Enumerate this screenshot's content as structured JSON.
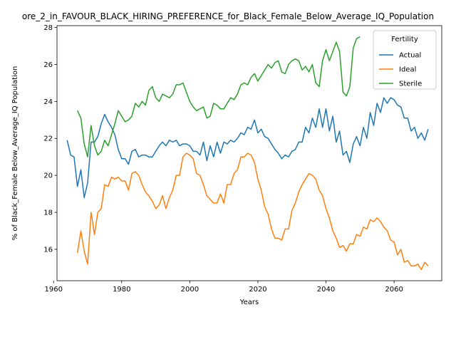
{
  "chart_data": {
    "type": "line",
    "title": "ore_2_in_FAVOUR_BLACK_HIRING_PREFERENCE_for_Black_Female_Below_Average_IQ_Population",
    "xlabel": "Years",
    "ylabel": "% of Black_Female Below_Average_IQ Population",
    "xlim": [
      1961,
      2074
    ],
    "ylim": [
      14.3,
      28.1
    ],
    "xticks": [
      1960,
      1980,
      2000,
      2020,
      2040,
      2060
    ],
    "yticks": [
      16,
      18,
      20,
      22,
      24,
      26,
      28
    ],
    "grid": false,
    "legend": {
      "title": "Fertility",
      "placement": "top-right"
    },
    "series": [
      {
        "name": "Actual",
        "color": "#1f77b4",
        "points": [
          [
            1964,
            21.9
          ],
          [
            1965,
            21.1
          ],
          [
            1966,
            21.0
          ],
          [
            1967,
            19.4
          ],
          [
            1968,
            20.3
          ],
          [
            1969,
            18.8
          ],
          [
            1970,
            19.6
          ],
          [
            1971,
            21.8
          ],
          [
            1972,
            21.8
          ],
          [
            1973,
            22.1
          ],
          [
            1974,
            22.8
          ],
          [
            1975,
            23.3
          ],
          [
            1976,
            22.9
          ],
          [
            1977,
            22.6
          ],
          [
            1978,
            22.2
          ],
          [
            1979,
            21.4
          ],
          [
            1980,
            20.9
          ],
          [
            1981,
            20.9
          ],
          [
            1982,
            20.6
          ],
          [
            1983,
            21.3
          ],
          [
            1984,
            21.4
          ],
          [
            1985,
            21.0
          ],
          [
            1986,
            21.1
          ],
          [
            1987,
            21.1
          ],
          [
            1988,
            21.0
          ],
          [
            1989,
            21.0
          ],
          [
            1990,
            21.3
          ],
          [
            1991,
            21.6
          ],
          [
            1992,
            21.8
          ],
          [
            1993,
            21.6
          ],
          [
            1994,
            21.9
          ],
          [
            1995,
            21.8
          ],
          [
            1996,
            21.9
          ],
          [
            1997,
            21.6
          ],
          [
            1998,
            21.7
          ],
          [
            1999,
            21.7
          ],
          [
            2000,
            21.6
          ],
          [
            2001,
            21.3
          ],
          [
            2002,
            21.3
          ],
          [
            2003,
            21.1
          ],
          [
            2004,
            21.8
          ],
          [
            2005,
            20.8
          ],
          [
            2006,
            21.6
          ],
          [
            2007,
            21.0
          ],
          [
            2008,
            21.8
          ],
          [
            2009,
            21.2
          ],
          [
            2010,
            21.8
          ],
          [
            2011,
            21.7
          ],
          [
            2012,
            21.9
          ],
          [
            2013,
            21.8
          ],
          [
            2014,
            22.0
          ],
          [
            2015,
            22.3
          ],
          [
            2016,
            22.2
          ],
          [
            2017,
            22.6
          ],
          [
            2018,
            22.5
          ],
          [
            2019,
            23.0
          ],
          [
            2020,
            22.3
          ],
          [
            2021,
            22.5
          ],
          [
            2022,
            22.1
          ],
          [
            2023,
            22.0
          ],
          [
            2024,
            21.7
          ],
          [
            2025,
            21.4
          ],
          [
            2026,
            21.2
          ],
          [
            2027,
            20.9
          ],
          [
            2028,
            21.1
          ],
          [
            2029,
            21.0
          ],
          [
            2030,
            21.3
          ],
          [
            2031,
            21.4
          ],
          [
            2032,
            21.8
          ],
          [
            2033,
            21.8
          ],
          [
            2034,
            22.6
          ],
          [
            2035,
            22.3
          ],
          [
            2036,
            23.1
          ],
          [
            2037,
            22.6
          ],
          [
            2038,
            23.6
          ],
          [
            2039,
            22.6
          ],
          [
            2040,
            23.6
          ],
          [
            2041,
            22.4
          ],
          [
            2042,
            23.2
          ],
          [
            2043,
            21.8
          ],
          [
            2044,
            22.4
          ],
          [
            2045,
            21.1
          ],
          [
            2046,
            21.3
          ],
          [
            2047,
            20.7
          ],
          [
            2048,
            21.7
          ],
          [
            2049,
            22.1
          ],
          [
            2050,
            21.6
          ],
          [
            2051,
            22.6
          ],
          [
            2052,
            22.0
          ],
          [
            2053,
            23.4
          ],
          [
            2054,
            22.7
          ],
          [
            2055,
            23.9
          ],
          [
            2056,
            23.4
          ],
          [
            2057,
            24.2
          ],
          [
            2058,
            23.9
          ],
          [
            2059,
            24.2
          ],
          [
            2060,
            24.1
          ],
          [
            2061,
            23.8
          ],
          [
            2062,
            23.7
          ],
          [
            2063,
            23.1
          ],
          [
            2064,
            23.1
          ],
          [
            2065,
            22.4
          ],
          [
            2066,
            22.6
          ],
          [
            2067,
            22.0
          ],
          [
            2068,
            22.3
          ],
          [
            2069,
            21.9
          ],
          [
            2070,
            22.5
          ]
        ]
      },
      {
        "name": "Ideal",
        "color": "#ff7f0e",
        "points": [
          [
            1967,
            15.8
          ],
          [
            1968,
            17.0
          ],
          [
            1969,
            15.9
          ],
          [
            1970,
            15.2
          ],
          [
            1971,
            18.0
          ],
          [
            1972,
            16.8
          ],
          [
            1973,
            18.0
          ],
          [
            1974,
            18.2
          ],
          [
            1975,
            19.5
          ],
          [
            1976,
            19.4
          ],
          [
            1977,
            19.9
          ],
          [
            1978,
            19.8
          ],
          [
            1979,
            19.9
          ],
          [
            1980,
            19.7
          ],
          [
            1981,
            19.7
          ],
          [
            1982,
            19.2
          ],
          [
            1983,
            20.1
          ],
          [
            1984,
            20.2
          ],
          [
            1985,
            20.0
          ],
          [
            1986,
            19.5
          ],
          [
            1987,
            19.1
          ],
          [
            1988,
            18.9
          ],
          [
            1989,
            18.6
          ],
          [
            1990,
            18.2
          ],
          [
            1991,
            18.4
          ],
          [
            1992,
            18.9
          ],
          [
            1993,
            18.2
          ],
          [
            1994,
            18.8
          ],
          [
            1995,
            19.2
          ],
          [
            1996,
            20.0
          ],
          [
            1997,
            20.0
          ],
          [
            1998,
            21.0
          ],
          [
            1999,
            21.2
          ],
          [
            2000,
            21.1
          ],
          [
            2001,
            20.9
          ],
          [
            2002,
            20.1
          ],
          [
            2003,
            20.0
          ],
          [
            2004,
            19.5
          ],
          [
            2005,
            18.9
          ],
          [
            2006,
            18.7
          ],
          [
            2007,
            18.5
          ],
          [
            2008,
            18.5
          ],
          [
            2009,
            19.0
          ],
          [
            2010,
            18.5
          ],
          [
            2011,
            19.5
          ],
          [
            2012,
            19.5
          ],
          [
            2013,
            20.1
          ],
          [
            2014,
            20.3
          ],
          [
            2015,
            21.0
          ],
          [
            2016,
            21.0
          ],
          [
            2017,
            21.2
          ],
          [
            2018,
            21.1
          ],
          [
            2019,
            20.7
          ],
          [
            2020,
            19.8
          ],
          [
            2021,
            19.2
          ],
          [
            2022,
            18.3
          ],
          [
            2023,
            17.9
          ],
          [
            2024,
            17.1
          ],
          [
            2025,
            16.6
          ],
          [
            2026,
            16.6
          ],
          [
            2027,
            16.5
          ],
          [
            2028,
            17.1
          ],
          [
            2029,
            17.1
          ],
          [
            2030,
            18.1
          ],
          [
            2031,
            18.5
          ],
          [
            2032,
            19.1
          ],
          [
            2033,
            19.5
          ],
          [
            2034,
            19.8
          ],
          [
            2035,
            20.1
          ],
          [
            2036,
            20.0
          ],
          [
            2037,
            19.8
          ],
          [
            2038,
            19.2
          ],
          [
            2039,
            18.9
          ],
          [
            2040,
            18.2
          ],
          [
            2041,
            17.7
          ],
          [
            2042,
            17.0
          ],
          [
            2043,
            16.6
          ],
          [
            2044,
            16.1
          ],
          [
            2045,
            16.2
          ],
          [
            2046,
            15.9
          ],
          [
            2047,
            16.3
          ],
          [
            2048,
            16.3
          ],
          [
            2049,
            16.8
          ],
          [
            2050,
            16.7
          ],
          [
            2051,
            17.2
          ],
          [
            2052,
            17.1
          ],
          [
            2053,
            17.6
          ],
          [
            2054,
            17.5
          ],
          [
            2055,
            17.7
          ],
          [
            2056,
            17.5
          ],
          [
            2057,
            17.2
          ],
          [
            2058,
            17.0
          ],
          [
            2059,
            16.5
          ],
          [
            2060,
            16.4
          ],
          [
            2061,
            15.7
          ],
          [
            2062,
            16.0
          ],
          [
            2063,
            15.3
          ],
          [
            2064,
            15.4
          ],
          [
            2065,
            15.1
          ],
          [
            2066,
            15.1
          ],
          [
            2067,
            15.2
          ],
          [
            2068,
            14.9
          ],
          [
            2069,
            15.3
          ],
          [
            2070,
            15.1
          ]
        ]
      },
      {
        "name": "Sterile",
        "color": "#2ca02c",
        "points": [
          [
            1967,
            23.5
          ],
          [
            1968,
            23.1
          ],
          [
            1969,
            21.7
          ],
          [
            1970,
            21.0
          ],
          [
            1971,
            22.7
          ],
          [
            1972,
            21.6
          ],
          [
            1973,
            21.1
          ],
          [
            1974,
            21.3
          ],
          [
            1975,
            21.9
          ],
          [
            1976,
            21.6
          ],
          [
            1977,
            22.2
          ],
          [
            1978,
            22.8
          ],
          [
            1979,
            23.5
          ],
          [
            1980,
            23.2
          ],
          [
            1981,
            22.9
          ],
          [
            1982,
            23.0
          ],
          [
            1983,
            23.2
          ],
          [
            1984,
            23.9
          ],
          [
            1985,
            23.7
          ],
          [
            1986,
            24.0
          ],
          [
            1987,
            23.8
          ],
          [
            1988,
            24.6
          ],
          [
            1989,
            24.8
          ],
          [
            1990,
            24.2
          ],
          [
            1991,
            24.0
          ],
          [
            1992,
            24.4
          ],
          [
            1993,
            24.3
          ],
          [
            1994,
            24.2
          ],
          [
            1995,
            24.4
          ],
          [
            1996,
            24.9
          ],
          [
            1997,
            24.9
          ],
          [
            1998,
            25.0
          ],
          [
            1999,
            24.5
          ],
          [
            2000,
            24.0
          ],
          [
            2001,
            23.7
          ],
          [
            2002,
            23.5
          ],
          [
            2003,
            23.6
          ],
          [
            2004,
            23.7
          ],
          [
            2005,
            23.1
          ],
          [
            2006,
            23.2
          ],
          [
            2007,
            23.9
          ],
          [
            2008,
            23.8
          ],
          [
            2009,
            23.6
          ],
          [
            2010,
            23.6
          ],
          [
            2011,
            23.9
          ],
          [
            2012,
            24.2
          ],
          [
            2013,
            24.1
          ],
          [
            2014,
            24.4
          ],
          [
            2015,
            24.9
          ],
          [
            2016,
            25.0
          ],
          [
            2017,
            24.9
          ],
          [
            2018,
            25.3
          ],
          [
            2019,
            25.5
          ],
          [
            2020,
            25.1
          ],
          [
            2021,
            25.4
          ],
          [
            2022,
            25.7
          ],
          [
            2023,
            26.0
          ],
          [
            2024,
            25.8
          ],
          [
            2025,
            26.1
          ],
          [
            2026,
            26.2
          ],
          [
            2027,
            25.6
          ],
          [
            2028,
            25.5
          ],
          [
            2029,
            26.0
          ],
          [
            2030,
            26.2
          ],
          [
            2031,
            26.3
          ],
          [
            2032,
            26.2
          ],
          [
            2033,
            25.7
          ],
          [
            2034,
            25.9
          ],
          [
            2035,
            25.6
          ],
          [
            2036,
            26.0
          ],
          [
            2037,
            25.0
          ],
          [
            2038,
            24.8
          ],
          [
            2039,
            26.2
          ],
          [
            2040,
            26.8
          ],
          [
            2041,
            26.2
          ],
          [
            2042,
            26.7
          ],
          [
            2043,
            27.2
          ],
          [
            2044,
            26.7
          ],
          [
            2045,
            24.5
          ],
          [
            2046,
            24.3
          ],
          [
            2047,
            24.8
          ],
          [
            2048,
            26.9
          ],
          [
            2049,
            27.4
          ],
          [
            2050,
            27.5
          ]
        ]
      }
    ]
  }
}
